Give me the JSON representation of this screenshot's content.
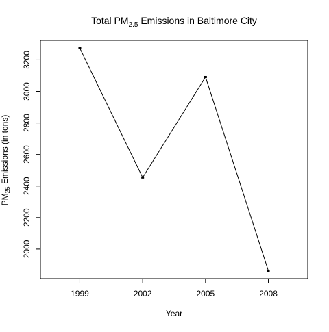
{
  "chart_data": {
    "type": "line",
    "title": {
      "prefix": "Total PM",
      "subscript": "2.5",
      "suffix": " Emissions in Baltimore City"
    },
    "xlabel": "Year",
    "ylabel": {
      "prefix": "PM",
      "subscript": "25",
      "suffix": " Emissions (in tons)"
    },
    "x": [
      1999,
      2002,
      2005,
      2008
    ],
    "xticks": [
      "1999",
      "2002",
      "2005",
      "2008"
    ],
    "y": [
      3274.18,
      2453.92,
      3091.35,
      1862.28
    ],
    "yticks": [
      2000,
      2200,
      2400,
      2600,
      2800,
      3000,
      3200
    ],
    "xlim": [
      1997.12,
      2009.88
    ],
    "ylim": [
      1812.9,
      3323.5
    ],
    "marker": "square",
    "line_color": "#000000",
    "grid": false
  }
}
